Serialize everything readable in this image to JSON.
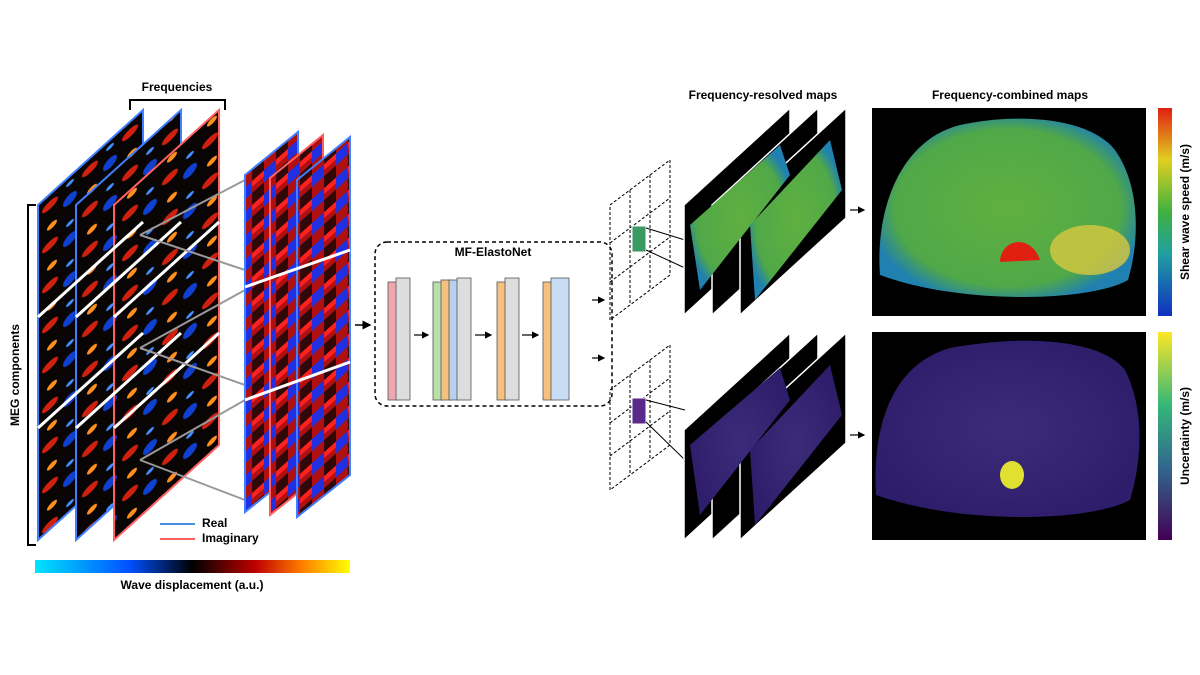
{
  "input": {
    "frequencies": "Frequencies",
    "components": "MEG components",
    "legend": [
      "Real",
      "Imaginary"
    ],
    "colorbar": "Wave displacement (a.u.)"
  },
  "network": {
    "title": "MF-ElastoNet"
  },
  "output": {
    "resolved": "Frequency-resolved maps",
    "combined": "Frequency-combined maps",
    "speed_colorbar": "Shear wave speed (m/s)",
    "uncertainty_colorbar": "Uncertainty (m/s)"
  }
}
